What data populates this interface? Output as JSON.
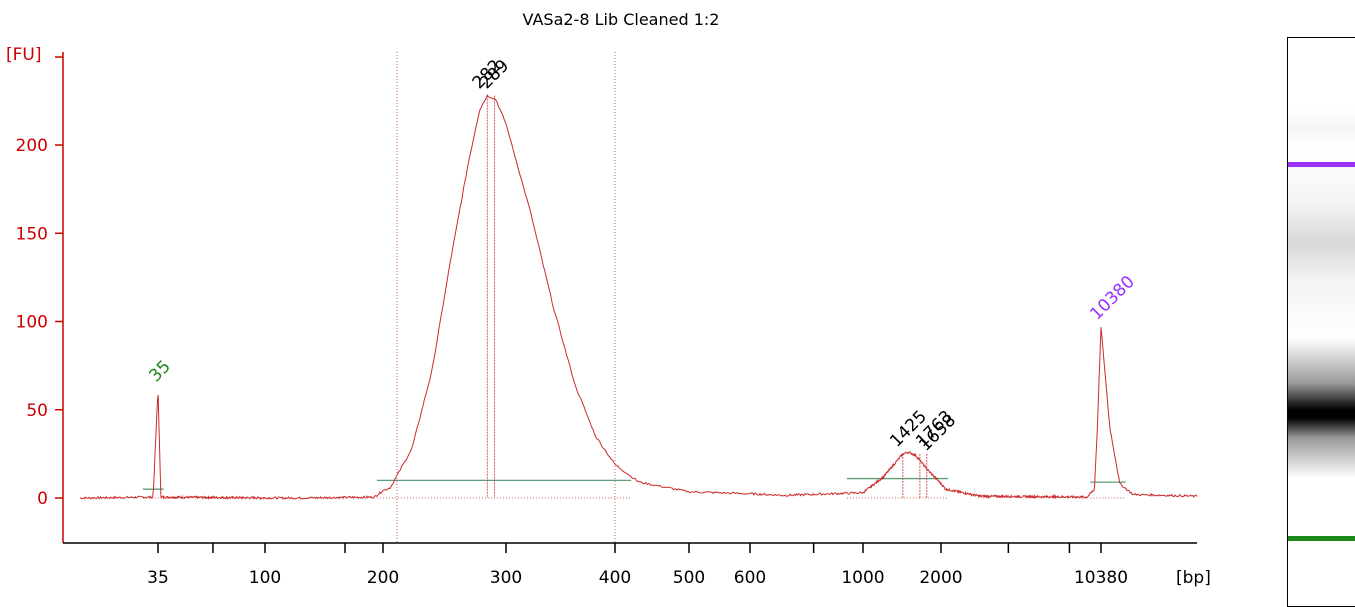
{
  "chart_data": {
    "type": "line",
    "title": "VASa2-8 Lib Cleaned 1:2",
    "ylabel": "[FU]",
    "xlabel": "[bp]",
    "ylim": [
      -22,
      253
    ],
    "yticks": [
      "0",
      "50",
      "100",
      "150",
      "200"
    ],
    "x_scale": "logarithmic (base-pair sizing)",
    "xticks": [
      "35",
      "100",
      "200",
      "300",
      "400",
      "500",
      "600",
      "1000",
      "2000",
      "10380"
    ],
    "grid": false,
    "series": [
      {
        "values": [
          [
            22,
            0
          ],
          [
            34,
            0.5
          ],
          [
            35,
            62
          ],
          [
            36,
            0.5
          ],
          [
            120,
            0
          ],
          [
            190,
            0.5
          ],
          [
            205,
            6
          ],
          [
            220,
            28
          ],
          [
            235,
            72
          ],
          [
            250,
            135
          ],
          [
            265,
            190
          ],
          [
            275,
            220
          ],
          [
            282,
            228
          ],
          [
            290,
            226
          ],
          [
            300,
            212
          ],
          [
            320,
            162
          ],
          [
            340,
            108
          ],
          [
            360,
            64
          ],
          [
            380,
            35
          ],
          [
            400,
            19
          ],
          [
            430,
            9
          ],
          [
            500,
            3.5
          ],
          [
            700,
            1.5
          ],
          [
            1000,
            3
          ],
          [
            1200,
            12
          ],
          [
            1425,
            25
          ],
          [
            1500,
            26
          ],
          [
            1600,
            24
          ],
          [
            1800,
            15
          ],
          [
            2100,
            5
          ],
          [
            3000,
            1
          ],
          [
            9000,
            0.5
          ],
          [
            9700,
            5
          ],
          [
            10000,
            40
          ],
          [
            10380,
            97
          ],
          [
            10800,
            40
          ],
          [
            11300,
            8
          ],
          [
            12000,
            2
          ],
          [
            16000,
            1
          ]
        ]
      }
    ],
    "peaks": [
      {
        "label": "35",
        "x": 35,
        "y": 62,
        "color": "#1a8a1a",
        "role": "lower marker"
      },
      {
        "label": "282",
        "x": 282,
        "y": 228,
        "color": "#000000"
      },
      {
        "label": "289",
        "x": 289,
        "y": 228,
        "color": "#000000"
      },
      {
        "label": "1425",
        "x": 1425,
        "y": 25,
        "color": "#000000"
      },
      {
        "label": "1763",
        "x": 1763,
        "y": 25,
        "color": "#000000"
      },
      {
        "label": "1658",
        "x": 1658,
        "y": 25,
        "color": "#000000"
      },
      {
        "label": "10380",
        "x": 10380,
        "y": 97,
        "color": "#9b30ff",
        "role": "upper marker"
      }
    ],
    "regions": [
      {
        "from_bp": 200,
        "to_bp": 400
      }
    ]
  },
  "colors": {
    "trace": "#cc2a2a",
    "axis": "#cc0000",
    "baseline": "#5f9e7a",
    "lower_marker": "#1a8a1a",
    "upper_marker": "#9b30ff"
  },
  "gel": {
    "upper_marker_color": "#9b30ff",
    "lower_marker_color": "#1a8a1a"
  }
}
